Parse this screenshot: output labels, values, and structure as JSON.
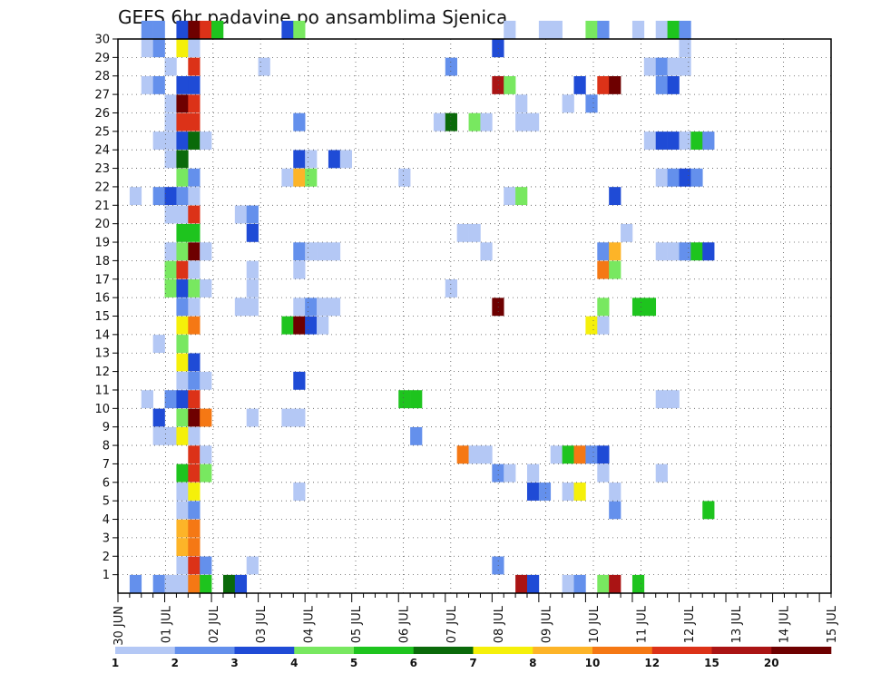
{
  "chart_data": {
    "type": "heatmap",
    "title": "GEFS 6hr padavine po ansamblima Sjenica",
    "x_tick_labels": [
      "30 JUN",
      "01 JUL",
      "02 JUL",
      "03 JUL",
      "04 JUL",
      "05 JUL",
      "06 JUL",
      "07 JUL",
      "08 JUL",
      "09 JUL",
      "10 JUL",
      "11 JUL",
      "12 JUL",
      "13 JUL",
      "14 JUL",
      "15 JUL"
    ],
    "y_tick_labels": [
      "1",
      "2",
      "3",
      "4",
      "5",
      "6",
      "7",
      "8",
      "9",
      "10",
      "11",
      "12",
      "13",
      "14",
      "15",
      "16",
      "17",
      "18",
      "19",
      "20",
      "21",
      "22",
      "23",
      "24",
      "25",
      "26",
      "27",
      "28",
      "29",
      "30"
    ],
    "x_range_steps": [
      0,
      61
    ],
    "y_range": [
      0,
      30
    ],
    "grid": true,
    "legend": {
      "placement": "bottom",
      "labels": [
        "1",
        "2",
        "3",
        "4",
        "5",
        "6",
        "7",
        "8",
        "10",
        "12",
        "15",
        "20"
      ],
      "colors": [
        "#b4c8f5",
        "#6490ec",
        "#1f4bd6",
        "#78e860",
        "#1ec41e",
        "#0a6a0a",
        "#f5f00a",
        "#fdb428",
        "#f57814",
        "#dc3218",
        "#aa1414",
        "#6e0000"
      ]
    },
    "cell_levels_note": "level index into legend.colors (0=1mm ... 11=20+mm)",
    "cells": [
      [
        2,
        30,
        1
      ],
      [
        3,
        30,
        1
      ],
      [
        5,
        30,
        2
      ],
      [
        6,
        30,
        11
      ],
      [
        7,
        30,
        9
      ],
      [
        8,
        30,
        4
      ],
      [
        14,
        30,
        2
      ],
      [
        15,
        30,
        3
      ],
      [
        33,
        30,
        0
      ],
      [
        36,
        30,
        0
      ],
      [
        37,
        30,
        0
      ],
      [
        40,
        30,
        3
      ],
      [
        41,
        30,
        1
      ],
      [
        44,
        30,
        0
      ],
      [
        46,
        30,
        0
      ],
      [
        47,
        30,
        4
      ],
      [
        48,
        30,
        1
      ],
      [
        2,
        29,
        0
      ],
      [
        3,
        29,
        1
      ],
      [
        5,
        29,
        6
      ],
      [
        6,
        29,
        0
      ],
      [
        32,
        29,
        2
      ],
      [
        48,
        29,
        0
      ],
      [
        4,
        28,
        0
      ],
      [
        6,
        28,
        9
      ],
      [
        12,
        28,
        0
      ],
      [
        28,
        28,
        1
      ],
      [
        45,
        28,
        0
      ],
      [
        46,
        28,
        1
      ],
      [
        47,
        28,
        0
      ],
      [
        48,
        28,
        0
      ],
      [
        2,
        27,
        0
      ],
      [
        3,
        27,
        1
      ],
      [
        5,
        27,
        2
      ],
      [
        6,
        27,
        2
      ],
      [
        32,
        27,
        10
      ],
      [
        33,
        27,
        3
      ],
      [
        39,
        27,
        2
      ],
      [
        41,
        27,
        9
      ],
      [
        42,
        27,
        11
      ],
      [
        46,
        27,
        1
      ],
      [
        47,
        27,
        2
      ],
      [
        4,
        26,
        0
      ],
      [
        5,
        26,
        11
      ],
      [
        6,
        26,
        9
      ],
      [
        34,
        26,
        0
      ],
      [
        38,
        26,
        0
      ],
      [
        40,
        26,
        1
      ],
      [
        4,
        25,
        0
      ],
      [
        5,
        25,
        9
      ],
      [
        6,
        25,
        9
      ],
      [
        15,
        25,
        1
      ],
      [
        27,
        25,
        0
      ],
      [
        28,
        25,
        5
      ],
      [
        30,
        25,
        3
      ],
      [
        31,
        25,
        0
      ],
      [
        34,
        25,
        0
      ],
      [
        35,
        25,
        0
      ],
      [
        3,
        24,
        0
      ],
      [
        4,
        24,
        0
      ],
      [
        5,
        24,
        2
      ],
      [
        6,
        24,
        5
      ],
      [
        7,
        24,
        0
      ],
      [
        45,
        24,
        0
      ],
      [
        46,
        24,
        2
      ],
      [
        47,
        24,
        2
      ],
      [
        48,
        24,
        0
      ],
      [
        49,
        24,
        4
      ],
      [
        50,
        24,
        1
      ],
      [
        4,
        23,
        0
      ],
      [
        5,
        23,
        5
      ],
      [
        15,
        23,
        2
      ],
      [
        16,
        23,
        0
      ],
      [
        18,
        23,
        2
      ],
      [
        19,
        23,
        0
      ],
      [
        5,
        22,
        3
      ],
      [
        6,
        22,
        1
      ],
      [
        14,
        22,
        0
      ],
      [
        15,
        22,
        7
      ],
      [
        16,
        22,
        3
      ],
      [
        24,
        22,
        0
      ],
      [
        46,
        22,
        0
      ],
      [
        47,
        22,
        1
      ],
      [
        48,
        22,
        2
      ],
      [
        49,
        22,
        1
      ],
      [
        1,
        21,
        0
      ],
      [
        3,
        21,
        1
      ],
      [
        4,
        21,
        2
      ],
      [
        5,
        21,
        1
      ],
      [
        6,
        21,
        0
      ],
      [
        33,
        21,
        0
      ],
      [
        34,
        21,
        3
      ],
      [
        42,
        21,
        2
      ],
      [
        4,
        20,
        0
      ],
      [
        5,
        20,
        0
      ],
      [
        6,
        20,
        9
      ],
      [
        10,
        20,
        0
      ],
      [
        11,
        20,
        1
      ],
      [
        5,
        19,
        4
      ],
      [
        6,
        19,
        4
      ],
      [
        11,
        19,
        2
      ],
      [
        29,
        19,
        0
      ],
      [
        30,
        19,
        0
      ],
      [
        43,
        19,
        0
      ],
      [
        4,
        18,
        0
      ],
      [
        5,
        18,
        3
      ],
      [
        6,
        18,
        11
      ],
      [
        7,
        18,
        0
      ],
      [
        15,
        18,
        1
      ],
      [
        16,
        18,
        0
      ],
      [
        17,
        18,
        0
      ],
      [
        18,
        18,
        0
      ],
      [
        31,
        18,
        0
      ],
      [
        41,
        18,
        1
      ],
      [
        42,
        18,
        7
      ],
      [
        46,
        18,
        0
      ],
      [
        47,
        18,
        0
      ],
      [
        48,
        18,
        1
      ],
      [
        49,
        18,
        4
      ],
      [
        50,
        18,
        2
      ],
      [
        4,
        17,
        3
      ],
      [
        5,
        17,
        9
      ],
      [
        6,
        17,
        0
      ],
      [
        11,
        17,
        0
      ],
      [
        15,
        17,
        0
      ],
      [
        41,
        17,
        8
      ],
      [
        42,
        17,
        3
      ],
      [
        4,
        16,
        3
      ],
      [
        5,
        16,
        2
      ],
      [
        6,
        16,
        3
      ],
      [
        7,
        16,
        0
      ],
      [
        11,
        16,
        0
      ],
      [
        28,
        16,
        0
      ],
      [
        5,
        15,
        1
      ],
      [
        6,
        15,
        0
      ],
      [
        10,
        15,
        0
      ],
      [
        11,
        15,
        0
      ],
      [
        15,
        15,
        0
      ],
      [
        16,
        15,
        1
      ],
      [
        17,
        15,
        0
      ],
      [
        18,
        15,
        0
      ],
      [
        32,
        15,
        11
      ],
      [
        41,
        15,
        3
      ],
      [
        44,
        15,
        4
      ],
      [
        45,
        15,
        4
      ],
      [
        5,
        14,
        6
      ],
      [
        6,
        14,
        8
      ],
      [
        14,
        14,
        4
      ],
      [
        15,
        14,
        11
      ],
      [
        16,
        14,
        2
      ],
      [
        17,
        14,
        0
      ],
      [
        40,
        14,
        6
      ],
      [
        41,
        14,
        0
      ],
      [
        3,
        13,
        0
      ],
      [
        5,
        13,
        3
      ],
      [
        5,
        12,
        6
      ],
      [
        6,
        12,
        2
      ],
      [
        5,
        11,
        0
      ],
      [
        6,
        11,
        1
      ],
      [
        7,
        11,
        0
      ],
      [
        15,
        11,
        2
      ],
      [
        2,
        10,
        0
      ],
      [
        4,
        10,
        1
      ],
      [
        5,
        10,
        2
      ],
      [
        6,
        10,
        9
      ],
      [
        24,
        10,
        4
      ],
      [
        25,
        10,
        4
      ],
      [
        46,
        10,
        0
      ],
      [
        47,
        10,
        0
      ],
      [
        3,
        9,
        2
      ],
      [
        5,
        9,
        3
      ],
      [
        6,
        9,
        11
      ],
      [
        7,
        9,
        8
      ],
      [
        11,
        9,
        0
      ],
      [
        14,
        9,
        0
      ],
      [
        15,
        9,
        0
      ],
      [
        3,
        8,
        0
      ],
      [
        4,
        8,
        0
      ],
      [
        5,
        8,
        6
      ],
      [
        6,
        8,
        0
      ],
      [
        25,
        8,
        1
      ],
      [
        6,
        7,
        9
      ],
      [
        7,
        7,
        0
      ],
      [
        29,
        7,
        8
      ],
      [
        30,
        7,
        0
      ],
      [
        31,
        7,
        0
      ],
      [
        37,
        7,
        0
      ],
      [
        38,
        7,
        4
      ],
      [
        39,
        7,
        8
      ],
      [
        40,
        7,
        1
      ],
      [
        41,
        7,
        2
      ],
      [
        5,
        6,
        4
      ],
      [
        6,
        6,
        9
      ],
      [
        7,
        6,
        3
      ],
      [
        32,
        6,
        1
      ],
      [
        33,
        6,
        0
      ],
      [
        35,
        6,
        0
      ],
      [
        41,
        6,
        0
      ],
      [
        46,
        6,
        0
      ],
      [
        5,
        5,
        0
      ],
      [
        6,
        5,
        6
      ],
      [
        15,
        5,
        0
      ],
      [
        35,
        5,
        2
      ],
      [
        36,
        5,
        1
      ],
      [
        38,
        5,
        0
      ],
      [
        39,
        5,
        6
      ],
      [
        42,
        5,
        0
      ],
      [
        5,
        4,
        0
      ],
      [
        6,
        4,
        1
      ],
      [
        42,
        4,
        1
      ],
      [
        50,
        4,
        4
      ],
      [
        5,
        3,
        7
      ],
      [
        6,
        3,
        8
      ],
      [
        5,
        2,
        7
      ],
      [
        6,
        2,
        8
      ],
      [
        5,
        1,
        0
      ],
      [
        6,
        1,
        9
      ],
      [
        7,
        1,
        1
      ],
      [
        11,
        1,
        0
      ],
      [
        32,
        1,
        1
      ],
      [
        1,
        0,
        1
      ],
      [
        3,
        0,
        1
      ],
      [
        4,
        0,
        0
      ],
      [
        5,
        0,
        0
      ],
      [
        6,
        0,
        8
      ],
      [
        7,
        0,
        4
      ],
      [
        9,
        0,
        5
      ],
      [
        10,
        0,
        2
      ],
      [
        34,
        0,
        10
      ],
      [
        35,
        0,
        2
      ],
      [
        38,
        0,
        0
      ],
      [
        39,
        0,
        1
      ],
      [
        41,
        0,
        3
      ],
      [
        42,
        0,
        10
      ],
      [
        44,
        0,
        4
      ]
    ]
  }
}
